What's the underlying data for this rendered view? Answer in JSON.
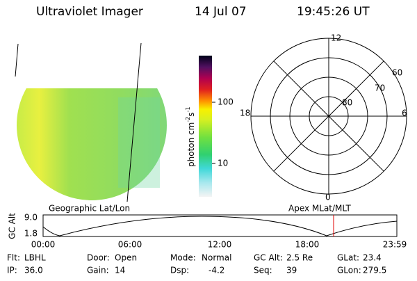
{
  "header": {
    "title": "Ultraviolet Imager",
    "date": "14 Jul 07",
    "time": "19:45:26 UT"
  },
  "colorbar": {
    "label": "photon cm",
    "exp1": "-2",
    "unit2": "s",
    "exp2": "-1",
    "ticks": [
      "100",
      "10"
    ]
  },
  "polar": {
    "mlt_labels": [
      "12",
      "18",
      "6",
      "0"
    ],
    "lat_labels": [
      "60",
      "70",
      "80"
    ]
  },
  "strip": {
    "left_title": "Geographic Lat/Lon",
    "right_title": "Apex MLat/MLT",
    "axis_label": "GC Alt",
    "yticks": [
      "9.0",
      "1.8"
    ],
    "xticks": [
      "00:00",
      "06:00",
      "12:00",
      "18:00",
      "23:59"
    ]
  },
  "footer": [
    [
      {
        "label": "Flt:",
        "value": "LBHL"
      },
      {
        "label": "Door:",
        "value": "Open"
      },
      {
        "label": "Mode:",
        "value": "Normal"
      },
      {
        "label": "GC Alt:",
        "value": "2.5 Re"
      },
      {
        "label": "GLat:",
        "value": "23.4"
      }
    ],
    [
      {
        "label": "IP:",
        "value": "36.0"
      },
      {
        "label": "Gain:",
        "value": "14"
      },
      {
        "label": "Dsp:",
        "value": "-4.2"
      },
      {
        "label": "Seq:",
        "value": "39"
      },
      {
        "label": "GLon:",
        "value": "279.5"
      }
    ]
  ]
}
